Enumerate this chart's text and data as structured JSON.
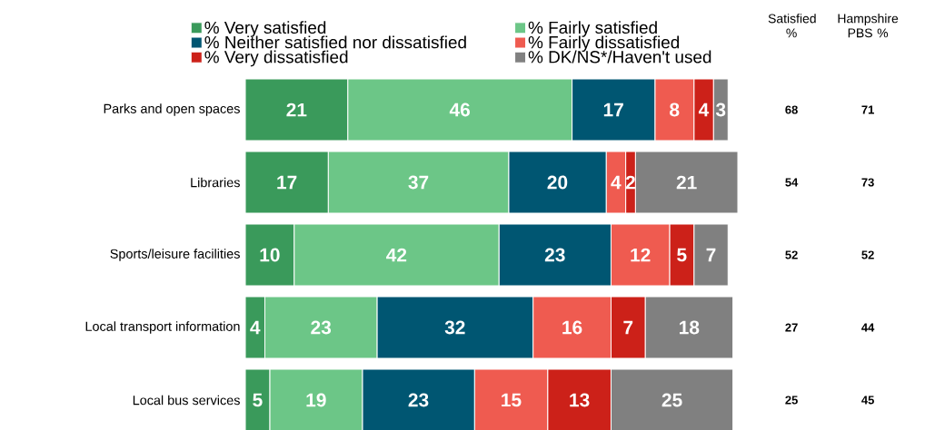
{
  "chart_data": {
    "type": "bar",
    "orientation": "horizontal",
    "stacked": true,
    "data_labels": true,
    "legend": "top",
    "categories": [
      "Parks and open spaces",
      "Libraries",
      "Sports/leisure facilities",
      "Local transport information",
      "Local bus services"
    ],
    "series": [
      {
        "name": "% Very satisfied",
        "color": "#3a9a5b",
        "values": [
          21,
          17,
          10,
          4,
          5
        ]
      },
      {
        "name": "% Fairly satisfied",
        "color": "#6cc687",
        "values": [
          46,
          37,
          42,
          23,
          19
        ]
      },
      {
        "name": "% Neither satisfied nor dissatisfied",
        "color": "#005672",
        "values": [
          17,
          20,
          23,
          32,
          23
        ]
      },
      {
        "name": "% Fairly dissatisfied",
        "color": "#ef5b50",
        "values": [
          8,
          4,
          12,
          16,
          15
        ]
      },
      {
        "name": "% Very dissatisfied",
        "color": "#cc2119",
        "values": [
          4,
          2,
          5,
          7,
          13
        ]
      },
      {
        "name": "% DK/NS*/Haven't used",
        "color": "#808080",
        "values": [
          3,
          21,
          7,
          18,
          25
        ]
      }
    ],
    "annotations": [
      "Satisfied %",
      "Hampshire PBS %",
      "68",
      "54",
      "52",
      "27",
      "25",
      "71",
      "73",
      "52",
      "44",
      "45"
    ]
  }
}
